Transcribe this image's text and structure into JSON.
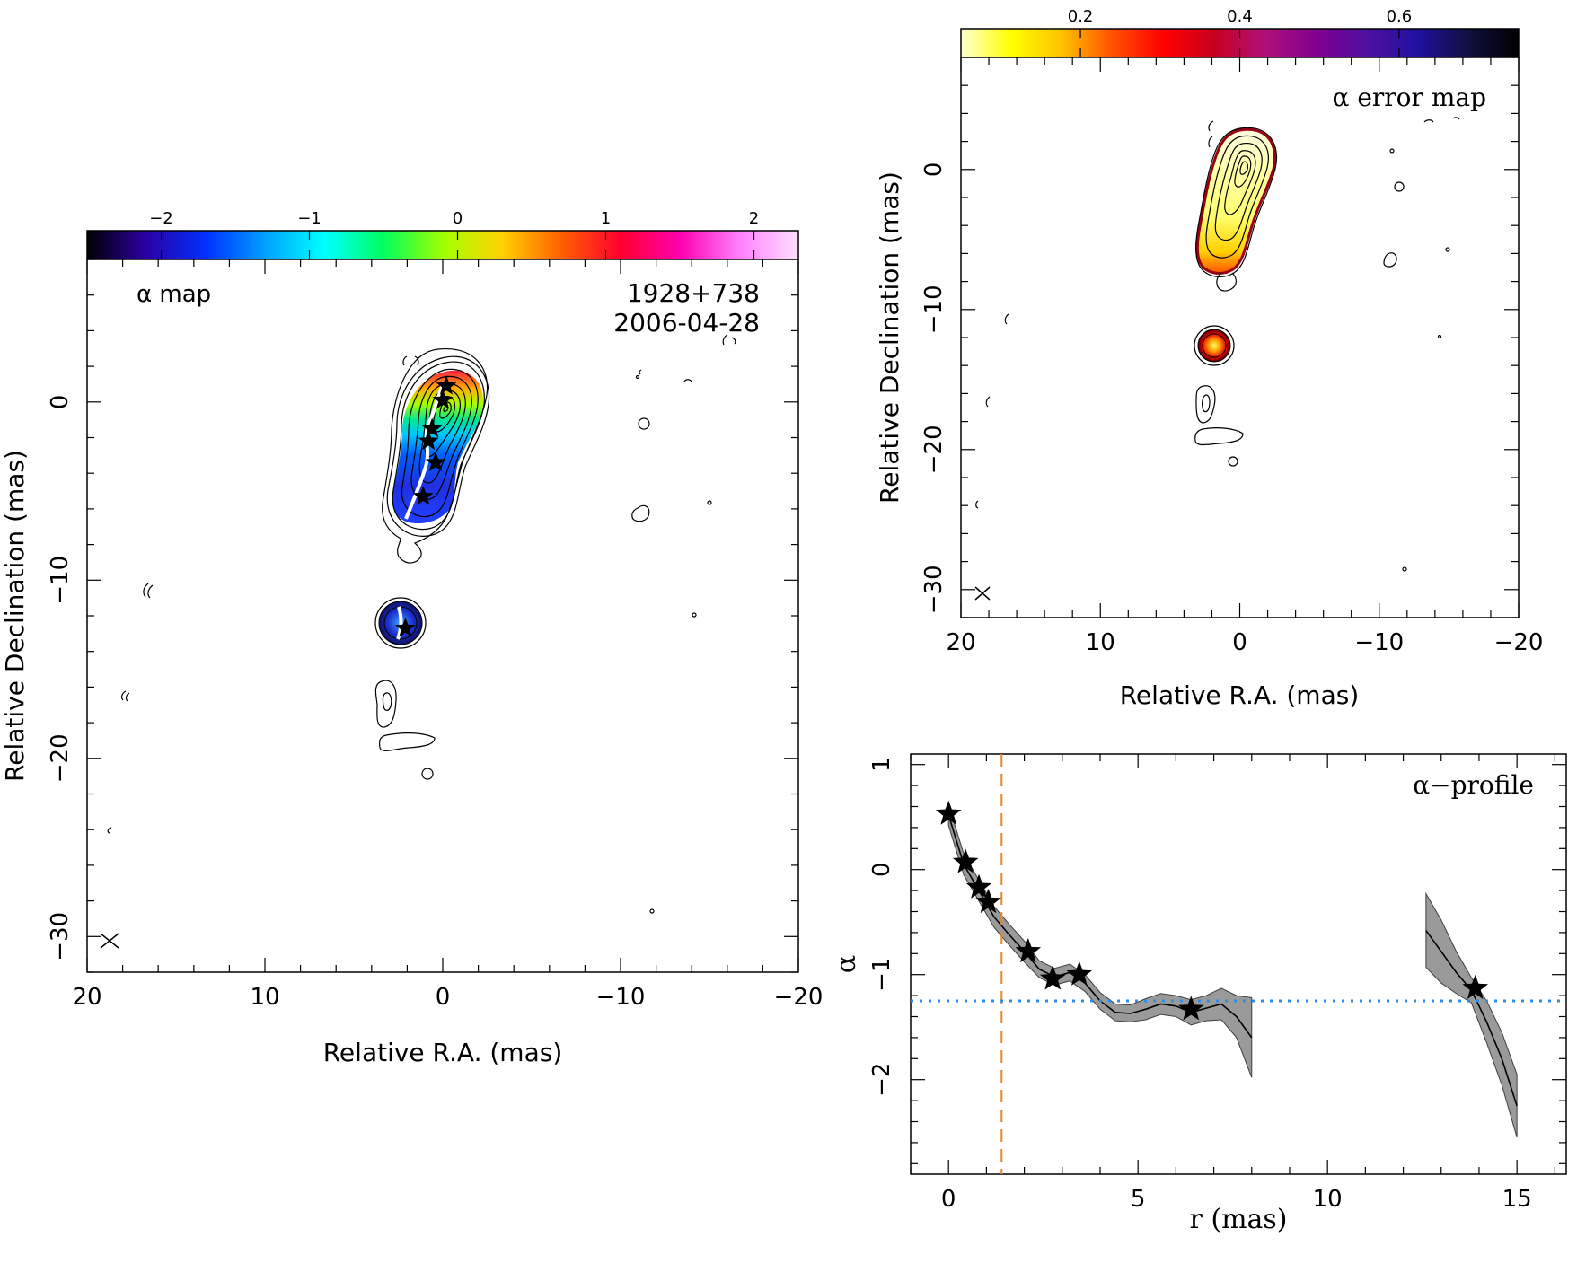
{
  "chart_data": [
    {
      "type": "heatmap",
      "panel": "alpha-map",
      "title": "α map",
      "source": "1928+738",
      "epoch": "2006-04-28",
      "xlabel": "Relative R.A. (mas)",
      "ylabel": "Relative Declination (mas)",
      "xlim": [
        20,
        -20
      ],
      "ylim": [
        -32,
        8
      ],
      "xticks": [
        "20",
        "10",
        "0",
        "−10",
        "−20"
      ],
      "yticks": [
        "0",
        "−10",
        "−20",
        "−30"
      ],
      "colorbar": {
        "range": [
          -2.5,
          2.3
        ],
        "ticks": [
          "−2",
          "−1",
          "0",
          "1",
          "2"
        ],
        "palette": [
          "#000000",
          "#2b00a6",
          "#0030ff",
          "#00a0ff",
          "#00ffff",
          "#00ff60",
          "#a0ff00",
          "#ffd000",
          "#ff6000",
          "#ff0030",
          "#ff00b0",
          "#ff80ff",
          "#ffe0ff"
        ]
      },
      "ridge_markers": [
        {
          "x": -0.2,
          "y": 0.9
        },
        {
          "x": 0.0,
          "y": 0.1
        },
        {
          "x": 0.6,
          "y": -1.5
        },
        {
          "x": 0.8,
          "y": -2.2
        },
        {
          "x": 0.4,
          "y": -3.4
        },
        {
          "x": 1.1,
          "y": -5.3
        },
        {
          "x": 2.1,
          "y": -12.7
        }
      ]
    },
    {
      "type": "heatmap",
      "panel": "alpha-error-map",
      "title": "α error map",
      "xlabel": "Relative R.A. (mas)",
      "ylabel": "Relative Declination (mas)",
      "xlim": [
        20,
        -20
      ],
      "ylim": [
        -32,
        8
      ],
      "xticks": [
        "20",
        "10",
        "0",
        "−10",
        "−20"
      ],
      "yticks": [
        "0",
        "−10",
        "−20",
        "−30"
      ],
      "colorbar": {
        "range": [
          0.05,
          0.75
        ],
        "ticks": [
          "0.2",
          "0.4",
          "0.6"
        ],
        "palette": [
          "#ffffd0",
          "#ffff00",
          "#ffc000",
          "#ff5000",
          "#ff0000",
          "#c80020",
          "#b0107a",
          "#800090",
          "#5010a0",
          "#2010a0",
          "#101040",
          "#000000"
        ]
      }
    },
    {
      "type": "line",
      "panel": "alpha-profile",
      "title": "α−profile",
      "xlabel": "r (mas)",
      "ylabel": "α",
      "xlim": [
        -1,
        16.3
      ],
      "ylim": [
        -2.9,
        1.1
      ],
      "xticks": [
        "0",
        "5",
        "10",
        "15"
      ],
      "yticks": [
        "1",
        "0",
        "−1",
        "−2"
      ],
      "vertical_line": {
        "x": 1.4,
        "color": "#e8882a",
        "style": "dashed"
      },
      "horizontal_line": {
        "y": -1.25,
        "color": "#2a8fe8",
        "style": "dotted"
      },
      "series": [
        {
          "x": [
            0,
            0.4,
            0.8,
            1.2,
            1.6,
            2.0,
            2.4,
            2.8,
            3.2,
            3.6,
            4.0,
            4.4,
            4.8,
            5.2,
            5.6,
            6.0,
            6.4,
            6.8,
            7.2,
            7.6,
            8.0
          ],
          "y": [
            0.52,
            0.05,
            -0.2,
            -0.45,
            -0.62,
            -0.78,
            -0.95,
            -1.02,
            -0.98,
            -1.08,
            -1.25,
            -1.36,
            -1.37,
            -1.33,
            -1.28,
            -1.3,
            -1.36,
            -1.32,
            -1.28,
            -1.4,
            -1.6
          ],
          "err": [
            0.1,
            0.1,
            0.1,
            0.1,
            0.1,
            0.1,
            0.08,
            0.08,
            0.08,
            0.08,
            0.08,
            0.08,
            0.08,
            0.1,
            0.1,
            0.1,
            0.12,
            0.12,
            0.15,
            0.2,
            0.38
          ]
        },
        {
          "x": [
            12.6,
            13.0,
            13.4,
            13.8,
            14.2,
            14.6,
            15.0
          ],
          "y": [
            -0.58,
            -0.78,
            -0.98,
            -1.15,
            -1.45,
            -1.8,
            -2.25
          ],
          "err": [
            0.35,
            0.3,
            0.2,
            0.12,
            0.2,
            0.25,
            0.3
          ]
        }
      ],
      "markers": {
        "x": [
          0.0,
          0.45,
          0.8,
          1.05,
          2.1,
          2.75,
          3.45,
          6.4,
          13.9
        ],
        "y": [
          0.53,
          0.07,
          -0.17,
          -0.31,
          -0.78,
          -1.04,
          -1.0,
          -1.33,
          -1.13
        ]
      }
    }
  ]
}
